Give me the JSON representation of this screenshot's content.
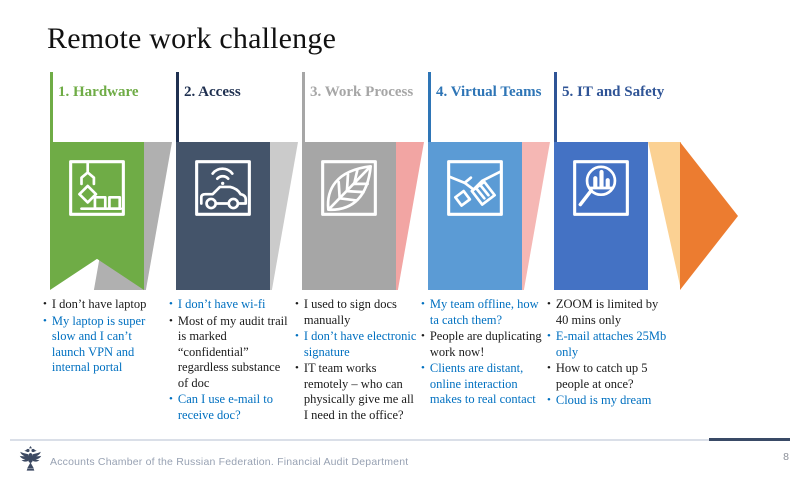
{
  "title": "Remote work challenge",
  "palette": {
    "conn1": "#B0B0B0",
    "conn2": "#CBCBCB",
    "conn3": "#F2A5A3",
    "conn4": "#F5B7B4",
    "conn5": "#FBD193",
    "arrow": "#EC7C30"
  },
  "columns": [
    {
      "header": "1. Hardware",
      "accent": "#6FAC46",
      "banner_color": "#6FAC46",
      "shape": "pennant",
      "icon": "crane-icon",
      "bullets": [
        {
          "text": "I don’t have laptop",
          "color": "black"
        },
        {
          "text": "My laptop is super slow and I can’t launch VPN and internal portal",
          "color": "blue"
        }
      ]
    },
    {
      "header": "2. Access",
      "accent": "#1F3050",
      "banner_color": "#44546A",
      "shape": "flag",
      "icon": "connected-car-icon",
      "bullets": [
        {
          "text": "I don’t have wi-fi",
          "color": "blue"
        },
        {
          "text": "Most of my audit trail is marked “confidential” regardless substance of doc",
          "color": "black"
        },
        {
          "text": "Can I use e-mail to receive doc?",
          "color": "blue"
        }
      ]
    },
    {
      "header": "3. Work Process",
      "accent": "#A6A6A6",
      "banner_color": "#A6A6A6",
      "shape": "flag",
      "icon": "leaf-icon",
      "bullets": [
        {
          "text": "I used to sign docs manually",
          "color": "black"
        },
        {
          "text": "I don’t have electronic signature",
          "color": "blue"
        },
        {
          "text": "IT team works remotely – who can physically give me all  I need in the office?",
          "color": "black"
        }
      ]
    },
    {
      "header": "4. Virtual Teams",
      "accent": "#2E75B6",
      "banner_color": "#5B9BD5",
      "shape": "flag",
      "icon": "handshake-icon",
      "bullets": [
        {
          "text": "My team offline, how ta catch them?",
          "color": "blue"
        },
        {
          "text": "People are duplicating work now!",
          "color": "black"
        },
        {
          "text": "Clients are distant, online interaction makes to real contact",
          "color": "blue"
        }
      ]
    },
    {
      "header": "5. IT and Safety",
      "accent": "#2F5496",
      "banner_color": "#4472C4",
      "shape": "flag",
      "icon": "magnifier-chart-icon",
      "bullets": [
        {
          "text": "ZOOM is limited by 40 mins only",
          "color": "black"
        },
        {
          "text": "E-mail attaches 25Mb only",
          "color": "blue"
        },
        {
          "text": "How to catch up 5 people at once?",
          "color": "black"
        },
        {
          "text": "Cloud is my dream",
          "color": "blue"
        }
      ]
    }
  ],
  "footer": {
    "text": "Accounts Chamber of the Russian Federation. Financial Audit Department",
    "page": "8"
  }
}
